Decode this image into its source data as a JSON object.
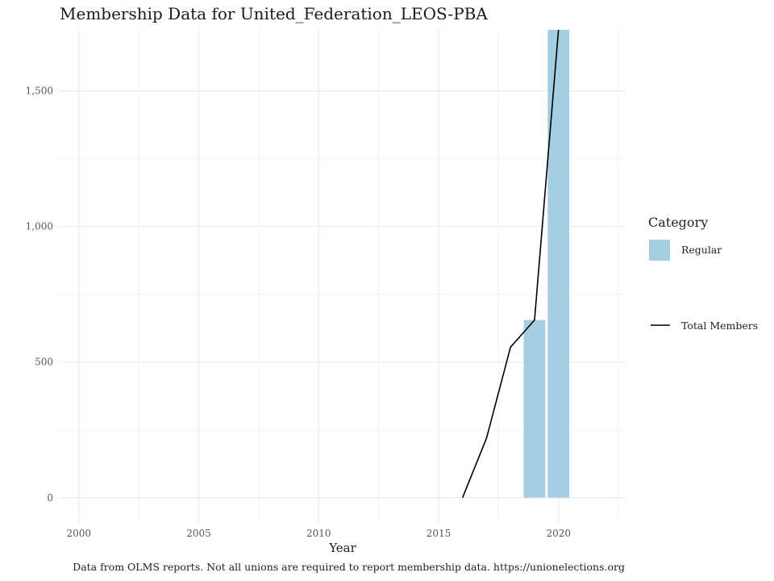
{
  "chart_data": {
    "type": "bar",
    "title": "Membership Data for United_Federation_LEOS-PBA",
    "xlabel": "Year",
    "ylabel": "",
    "xlim": [
      1999.2,
      2022.8
    ],
    "ylim": [
      -90,
      1725
    ],
    "x_ticks": [
      2000,
      2005,
      2010,
      2015,
      2020
    ],
    "x_tick_labels": [
      "2000",
      "2005",
      "2010",
      "2015",
      "2020"
    ],
    "y_ticks": [
      0,
      500,
      1000,
      1500
    ],
    "y_tick_labels": [
      "0",
      "500",
      "1,000",
      "1,500"
    ],
    "grid": true,
    "legend_position": "right",
    "legend_title": "Category",
    "bars": {
      "name": "Regular",
      "color": "#a6cee3",
      "x": [
        2019,
        2020
      ],
      "values": [
        655,
        1725
      ]
    },
    "line": {
      "name": "Total Members",
      "color": "#000000",
      "x": [
        2016,
        2017,
        2018,
        2019,
        2020
      ],
      "values": [
        0,
        220,
        555,
        655,
        1725
      ]
    },
    "caption": "Data from OLMS reports. Not all unions are required to report membership data. https://unionelections.org"
  }
}
